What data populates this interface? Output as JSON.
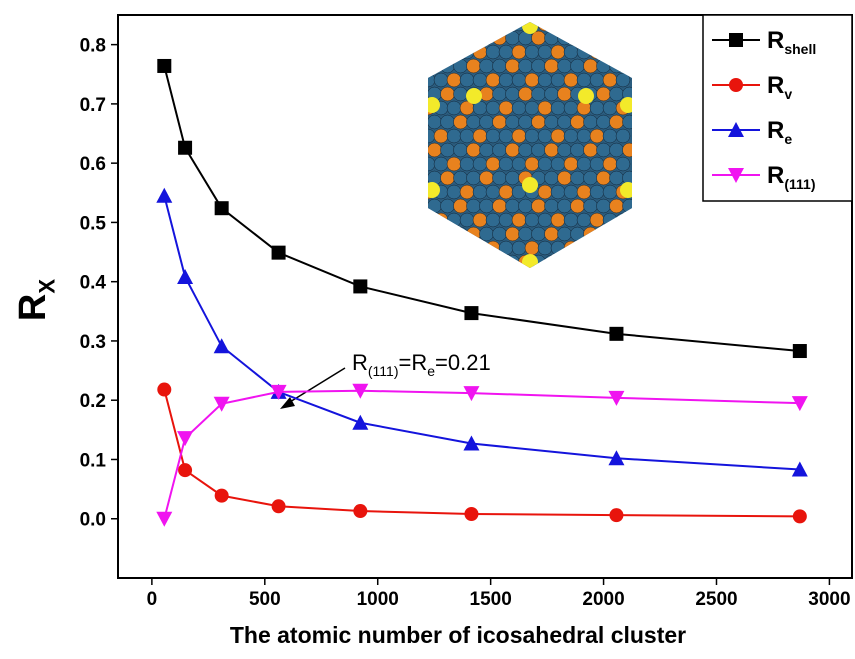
{
  "chart_data": {
    "type": "line",
    "x_label": "The atomic number of icosahedral cluster",
    "y_label": "RX",
    "x": [
      55,
      147,
      309,
      561,
      923,
      1415,
      2057,
      2869
    ],
    "series": [
      {
        "name": "Rshell",
        "color": "#000000",
        "marker": "square",
        "values": [
          0.764,
          0.626,
          0.524,
          0.449,
          0.392,
          0.347,
          0.312,
          0.283
        ]
      },
      {
        "name": "Rv",
        "color": "#e8140c",
        "marker": "circle",
        "values": [
          0.218,
          0.082,
          0.039,
          0.021,
          0.013,
          0.008,
          0.006,
          0.004
        ]
      },
      {
        "name": "Re",
        "color": "#1414dc",
        "marker": "triangle-up",
        "values": [
          0.545,
          0.408,
          0.291,
          0.214,
          0.162,
          0.127,
          0.102,
          0.083
        ]
      },
      {
        "name": "R(111)",
        "color": "#f014f0",
        "marker": "triangle-down",
        "values": [
          0,
          0.136,
          0.194,
          0.214,
          0.216,
          0.212,
          0.204,
          0.195
        ]
      }
    ],
    "annotation": [
      "R",
      "(111)",
      "=R",
      "e",
      "=0.21"
    ],
    "xlim": [
      -150,
      3100
    ],
    "xticks": [
      0,
      500,
      1000,
      1500,
      2000,
      2500,
      3000
    ],
    "ylim": [
      -0.1,
      0.85
    ],
    "yticks": [
      {
        "value": 0,
        "label": "0.0"
      },
      0.1,
      0.2,
      0.3,
      0.4,
      0.5,
      0.6,
      0.7,
      0.8
    ],
    "legend": "top-right"
  }
}
